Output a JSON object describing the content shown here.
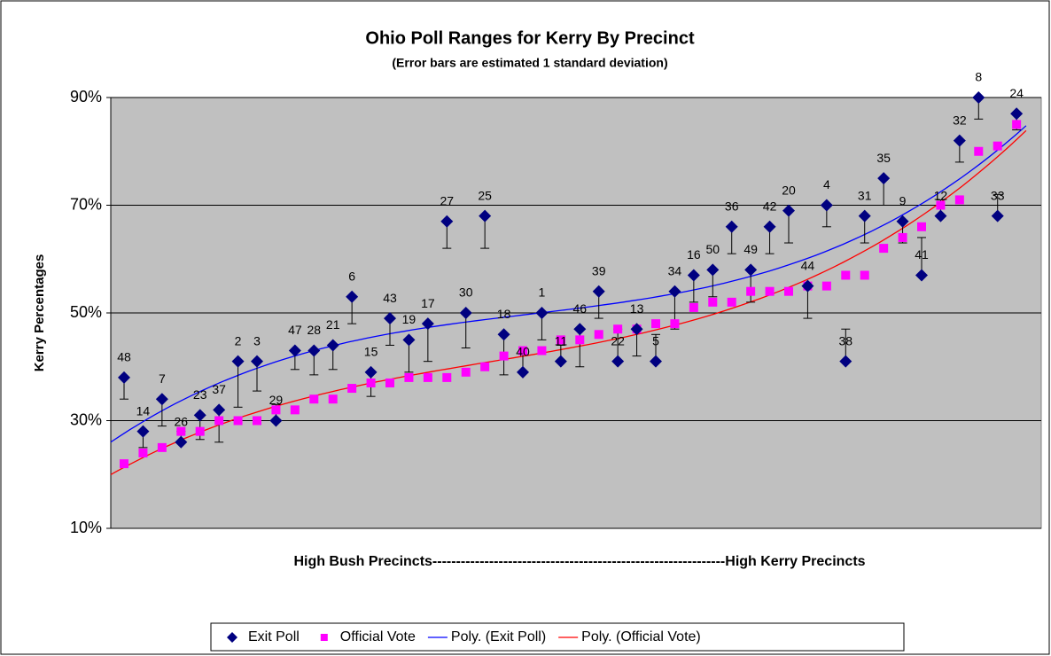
{
  "chart_data": {
    "type": "scatter",
    "title": "Ohio Poll Ranges for Kerry By Precinct",
    "subtitle": "(Error bars are estimated 1 standard deviation)",
    "y_label": "Kerry Percentages",
    "x_label": "High Bush Precincts--------------------------------------------------------------High Kerry Precincts",
    "categories": [
      "48",
      "14",
      "7",
      "26",
      "23",
      "37",
      "2",
      "3",
      "29",
      "47",
      "28",
      "21",
      "6",
      "15",
      "43",
      "19",
      "17",
      "27",
      "30",
      "25",
      "18",
      "40",
      "1",
      "11",
      "46",
      "39",
      "22",
      "13",
      "5",
      "34",
      "16",
      "50",
      "36",
      "49",
      "42",
      "20",
      "44",
      "4",
      "38",
      "31",
      "35",
      "9",
      "41",
      "12",
      "32",
      "8",
      "33",
      "24"
    ],
    "series": [
      {
        "name": "Exit Poll",
        "color": "#000080",
        "marker": "diamond",
        "values": [
          38,
          28,
          34,
          26,
          31,
          32,
          41,
          41,
          30,
          43,
          43,
          44,
          53,
          39,
          49,
          45,
          48,
          67,
          50,
          68,
          46,
          39,
          50,
          41,
          47,
          54,
          41,
          47,
          41,
          54,
          57,
          58,
          66,
          58,
          66,
          69,
          55,
          70,
          41,
          68,
          75,
          67,
          57,
          68,
          82,
          90,
          68,
          87
        ],
        "errors": [
          4,
          3,
          5,
          2,
          4.5,
          6,
          8.5,
          5.5,
          3,
          3.5,
          4.5,
          4.5,
          5,
          4.5,
          5,
          6,
          7,
          5,
          6.5,
          6,
          7.5,
          4,
          5,
          3,
          7,
          5,
          6,
          5,
          5,
          7,
          5,
          5,
          5,
          6,
          5,
          6,
          6,
          4,
          6,
          5,
          5,
          4,
          7,
          3,
          4,
          4,
          4,
          3
        ]
      },
      {
        "name": "Official Vote",
        "color": "#ff00ff",
        "marker": "square",
        "values": [
          22,
          24,
          25,
          28,
          28,
          30,
          30,
          30,
          32,
          32,
          34,
          34,
          36,
          37,
          37,
          38,
          38,
          38,
          39,
          40,
          42,
          43,
          43,
          45,
          45,
          46,
          47,
          47,
          48,
          48,
          51,
          52,
          52,
          54,
          54,
          54,
          55,
          55,
          57,
          57,
          62,
          64,
          66,
          70,
          71,
          80,
          81,
          85
        ]
      }
    ],
    "trendlines": [
      {
        "name": "Poly. (Exit Poll)",
        "color": "#0000ff",
        "of": 0
      },
      {
        "name": "Poly. (Official Vote)",
        "color": "#ff0000",
        "of": 1
      }
    ],
    "ylim": [
      10,
      90
    ],
    "yticks": [
      {
        "value": 10,
        "label": "10%"
      },
      {
        "value": 30,
        "label": "30%"
      },
      {
        "value": 50,
        "label": "50%"
      },
      {
        "value": 70,
        "label": "70%"
      },
      {
        "value": 90,
        "label": "90%"
      }
    ],
    "grid": true,
    "legend": "bottom"
  }
}
